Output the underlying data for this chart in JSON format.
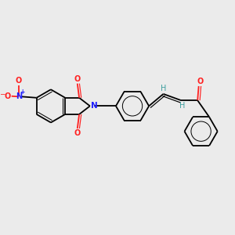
{
  "background_color": "#ebebeb",
  "bond_color": "#000000",
  "N_color": "#2020ff",
  "O_color": "#ff2020",
  "H_color": "#3d9e9e",
  "figsize": [
    3.0,
    3.0
  ],
  "dpi": 100,
  "xlim": [
    0,
    10
  ],
  "ylim": [
    0,
    10
  ],
  "bond_lw": 1.3,
  "double_lw": 0.85,
  "font_size": 7.0,
  "ring_r": 0.72
}
